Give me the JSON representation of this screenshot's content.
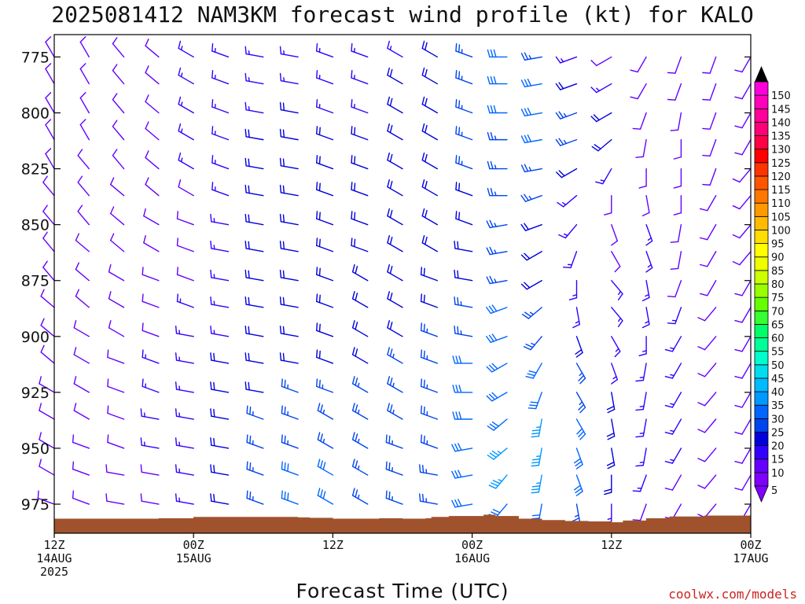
{
  "chart_data": {
    "type": "wind-barb-time-height",
    "title": "2025081412 NAM3KM forecast wind profile (kt) for KALO",
    "xlabel": "Forecast Time (UTC)",
    "ylabel": "",
    "watermark": "coolwx.com/models",
    "x_range_hours": [
      0,
      60
    ],
    "y_range_hpa": [
      988,
      765
    ],
    "x_ticks": [
      {
        "hour": 0,
        "lines": [
          "12Z",
          "14AUG",
          "2025"
        ]
      },
      {
        "hour": 12,
        "lines": [
          "00Z",
          "15AUG"
        ]
      },
      {
        "hour": 24,
        "lines": [
          "12Z"
        ]
      },
      {
        "hour": 36,
        "lines": [
          "00Z",
          "16AUG"
        ]
      },
      {
        "hour": 48,
        "lines": [
          "12Z"
        ]
      },
      {
        "hour": 60,
        "lines": [
          "00Z",
          "17AUG"
        ]
      }
    ],
    "y_ticks": [
      775,
      800,
      825,
      850,
      875,
      900,
      925,
      950,
      975
    ],
    "grid": false,
    "legend": {
      "placement": "right",
      "labels": [
        "5",
        "10",
        "15",
        "20",
        "25",
        "30",
        "35",
        "40",
        "45",
        "50",
        "55",
        "60",
        "65",
        "70",
        "75",
        "80",
        "85",
        "90",
        "95",
        "100",
        "105",
        "110",
        "115",
        "120",
        "125",
        "130",
        "135",
        "140",
        "145",
        "150"
      ],
      "colors": [
        "#8000ff",
        "#6600ff",
        "#3300ff",
        "#0000dd",
        "#0044ee",
        "#0066ff",
        "#0099ff",
        "#00bbff",
        "#00ddee",
        "#00ffcc",
        "#00ff99",
        "#00ff66",
        "#33ff33",
        "#66ff00",
        "#99ff00",
        "#ccff00",
        "#eeff00",
        "#ffff00",
        "#ffdd00",
        "#ffbb00",
        "#ff9900",
        "#ff7700",
        "#ff5500",
        "#ff3300",
        "#ff0000",
        "#ff0044",
        "#ff0077",
        "#ff0099",
        "#ff00bb",
        "#ff00dd"
      ]
    },
    "surface_pressure_hpa": [
      [
        0,
        981.6
      ],
      [
        6,
        981.6
      ],
      [
        9,
        981.4
      ],
      [
        12,
        980.8
      ],
      [
        18,
        980.8
      ],
      [
        21,
        981.0
      ],
      [
        22,
        981.2
      ],
      [
        24,
        981.6
      ],
      [
        28,
        981.4
      ],
      [
        30,
        981.6
      ],
      [
        32,
        981.4
      ],
      [
        32.5,
        980.8
      ],
      [
        34,
        980.4
      ],
      [
        37,
        979.8
      ],
      [
        38,
        980.4
      ],
      [
        40,
        981.6
      ],
      [
        42,
        982.2
      ],
      [
        44,
        982.6
      ],
      [
        46,
        982.8
      ],
      [
        48,
        983.2
      ],
      [
        49,
        982.4
      ],
      [
        51,
        981.4
      ],
      [
        53,
        980.6
      ],
      [
        56,
        980.2
      ],
      [
        58,
        980.2
      ],
      [
        60,
        980.2
      ]
    ],
    "levels_hpa": [
      775,
      787,
      800,
      812,
      825,
      837,
      850,
      862,
      875,
      887,
      900,
      912,
      925,
      937,
      950,
      962,
      975
    ],
    "hours": [
      0,
      3,
      6,
      9,
      12,
      15,
      18,
      21,
      24,
      27,
      30,
      33,
      36,
      39,
      42,
      45,
      48,
      51,
      54,
      57,
      60
    ],
    "wind_direction_deg": [
      [
        330,
        330,
        320,
        310,
        300,
        290,
        280,
        280,
        290,
        290,
        300,
        300,
        290,
        270,
        260,
        250,
        240,
        210,
        200,
        200,
        210
      ],
      [
        330,
        330,
        320,
        310,
        300,
        290,
        280,
        280,
        290,
        290,
        300,
        300,
        290,
        270,
        260,
        250,
        240,
        210,
        200,
        200,
        210
      ],
      [
        330,
        330,
        320,
        310,
        300,
        290,
        280,
        280,
        290,
        290,
        300,
        300,
        290,
        270,
        260,
        250,
        240,
        200,
        190,
        200,
        210
      ],
      [
        330,
        330,
        320,
        310,
        300,
        290,
        280,
        280,
        290,
        290,
        300,
        300,
        290,
        270,
        260,
        250,
        230,
        190,
        180,
        200,
        210
      ],
      [
        330,
        320,
        320,
        310,
        300,
        290,
        280,
        280,
        290,
        290,
        300,
        300,
        290,
        270,
        260,
        240,
        210,
        180,
        180,
        200,
        220
      ],
      [
        320,
        320,
        310,
        310,
        300,
        290,
        280,
        280,
        290,
        290,
        300,
        300,
        290,
        270,
        250,
        230,
        180,
        170,
        180,
        210,
        220
      ],
      [
        320,
        320,
        310,
        300,
        290,
        280,
        280,
        280,
        290,
        290,
        300,
        300,
        290,
        260,
        250,
        220,
        160,
        160,
        190,
        210,
        220
      ],
      [
        320,
        310,
        310,
        300,
        290,
        280,
        280,
        280,
        290,
        290,
        300,
        300,
        280,
        260,
        240,
        200,
        150,
        160,
        190,
        210,
        220
      ],
      [
        320,
        310,
        300,
        290,
        290,
        280,
        280,
        280,
        290,
        300,
        300,
        290,
        280,
        260,
        240,
        180,
        140,
        170,
        200,
        210,
        210
      ],
      [
        310,
        310,
        300,
        290,
        290,
        280,
        280,
        280,
        290,
        300,
        300,
        290,
        280,
        250,
        230,
        170,
        140,
        170,
        200,
        220,
        210
      ],
      [
        310,
        300,
        300,
        290,
        280,
        280,
        280,
        280,
        290,
        300,
        300,
        290,
        280,
        250,
        220,
        160,
        150,
        180,
        210,
        220,
        210
      ],
      [
        310,
        300,
        290,
        290,
        280,
        280,
        280,
        280,
        290,
        300,
        300,
        290,
        270,
        240,
        210,
        150,
        160,
        190,
        210,
        220,
        210
      ],
      [
        300,
        300,
        290,
        290,
        280,
        280,
        280,
        290,
        290,
        300,
        300,
        290,
        270,
        240,
        200,
        150,
        170,
        190,
        210,
        220,
        210
      ],
      [
        300,
        300,
        290,
        280,
        280,
        280,
        290,
        290,
        300,
        300,
        300,
        290,
        270,
        230,
        190,
        150,
        170,
        190,
        210,
        220,
        210
      ],
      [
        300,
        290,
        290,
        280,
        280,
        280,
        290,
        290,
        300,
        300,
        290,
        290,
        260,
        230,
        190,
        160,
        170,
        190,
        210,
        220,
        210
      ],
      [
        300,
        290,
        280,
        280,
        280,
        280,
        290,
        290,
        300,
        300,
        290,
        280,
        260,
        220,
        190,
        160,
        180,
        200,
        210,
        220,
        210
      ],
      [
        290,
        290,
        280,
        280,
        280,
        280,
        290,
        290,
        300,
        300,
        290,
        280,
        260,
        220,
        190,
        170,
        180,
        200,
        210,
        220,
        210
      ]
    ],
    "wind_speed_kt": [
      [
        10,
        10,
        10,
        10,
        15,
        15,
        15,
        15,
        15,
        15,
        15,
        20,
        25,
        30,
        25,
        15,
        10,
        10,
        10,
        10,
        10
      ],
      [
        10,
        10,
        10,
        10,
        15,
        15,
        15,
        15,
        15,
        15,
        20,
        20,
        25,
        30,
        30,
        20,
        15,
        10,
        10,
        10,
        10
      ],
      [
        10,
        10,
        10,
        10,
        15,
        15,
        15,
        20,
        15,
        15,
        20,
        20,
        25,
        30,
        30,
        25,
        20,
        10,
        10,
        10,
        10
      ],
      [
        10,
        10,
        10,
        10,
        15,
        15,
        20,
        20,
        20,
        20,
        20,
        20,
        25,
        25,
        30,
        25,
        20,
        10,
        10,
        10,
        10
      ],
      [
        10,
        10,
        10,
        10,
        15,
        15,
        20,
        20,
        20,
        20,
        20,
        20,
        25,
        25,
        25,
        20,
        15,
        10,
        10,
        10,
        10
      ],
      [
        10,
        10,
        10,
        10,
        10,
        15,
        20,
        20,
        20,
        20,
        20,
        20,
        20,
        25,
        25,
        15,
        10,
        10,
        10,
        10,
        10
      ],
      [
        10,
        10,
        10,
        10,
        10,
        15,
        20,
        20,
        20,
        20,
        20,
        20,
        20,
        25,
        20,
        15,
        10,
        15,
        10,
        10,
        10
      ],
      [
        10,
        10,
        10,
        10,
        10,
        15,
        20,
        20,
        20,
        20,
        20,
        20,
        20,
        25,
        20,
        15,
        10,
        15,
        10,
        10,
        10
      ],
      [
        10,
        10,
        10,
        10,
        10,
        15,
        20,
        20,
        20,
        20,
        20,
        20,
        20,
        25,
        20,
        15,
        15,
        15,
        10,
        10,
        10
      ],
      [
        10,
        10,
        10,
        10,
        15,
        15,
        20,
        20,
        20,
        20,
        20,
        20,
        25,
        30,
        25,
        15,
        15,
        15,
        15,
        10,
        10
      ],
      [
        10,
        10,
        10,
        10,
        15,
        15,
        20,
        20,
        20,
        20,
        20,
        25,
        25,
        30,
        25,
        20,
        15,
        15,
        15,
        10,
        10
      ],
      [
        10,
        10,
        10,
        15,
        15,
        20,
        20,
        20,
        20,
        20,
        25,
        25,
        30,
        30,
        30,
        25,
        15,
        15,
        15,
        10,
        10
      ],
      [
        10,
        10,
        10,
        15,
        15,
        20,
        20,
        25,
        25,
        25,
        25,
        25,
        30,
        30,
        30,
        25,
        20,
        15,
        15,
        10,
        10
      ],
      [
        10,
        10,
        10,
        15,
        15,
        20,
        25,
        25,
        25,
        25,
        25,
        25,
        30,
        30,
        35,
        30,
        20,
        15,
        15,
        10,
        10
      ],
      [
        10,
        10,
        10,
        15,
        15,
        20,
        25,
        25,
        25,
        25,
        25,
        25,
        30,
        35,
        35,
        30,
        20,
        15,
        15,
        10,
        10
      ],
      [
        10,
        10,
        10,
        10,
        15,
        20,
        25,
        30,
        30,
        25,
        25,
        25,
        30,
        35,
        35,
        30,
        20,
        15,
        10,
        10,
        10
      ],
      [
        10,
        10,
        10,
        10,
        15,
        20,
        25,
        30,
        30,
        25,
        25,
        25,
        30,
        30,
        30,
        25,
        15,
        10,
        10,
        10,
        10
      ]
    ]
  }
}
